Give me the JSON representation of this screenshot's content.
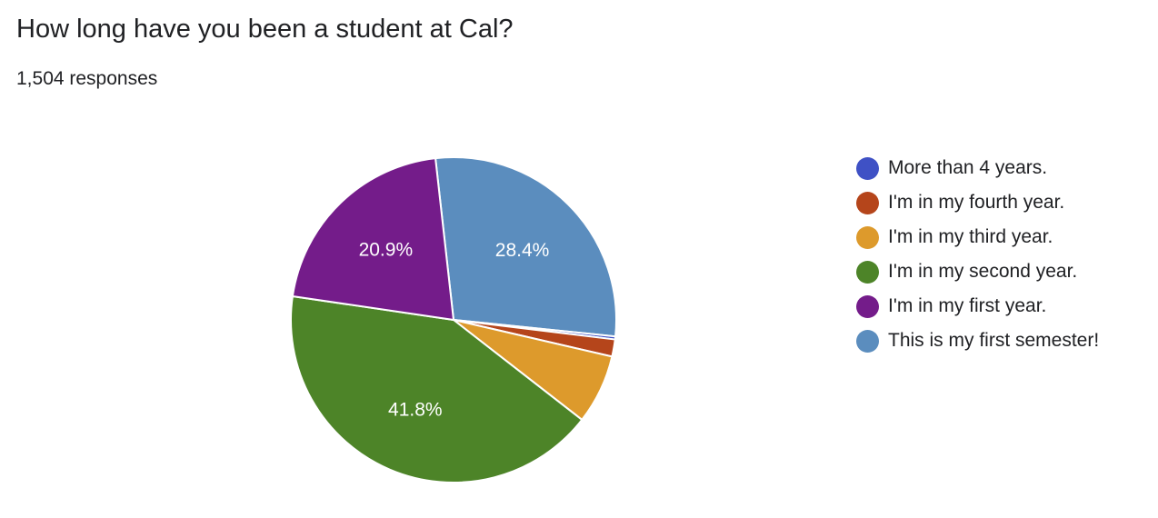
{
  "header": {
    "title": "How long have you been a student at Cal?",
    "responses": "1,504 responses"
  },
  "chart_data": {
    "type": "pie",
    "title": "How long have you been a student at Cal?",
    "categories": [
      "This is my first semester!",
      "More than 4 years.",
      "I'm in my fourth year.",
      "I'm in my third year.",
      "I'm in my second year.",
      "I'm in my first year."
    ],
    "values": [
      28.4,
      0.3,
      1.7,
      6.9,
      41.8,
      20.9
    ],
    "labels": [
      "28.4%",
      "",
      "",
      "",
      "41.8%",
      "20.9%"
    ],
    "colors": [
      "#5b8dbe",
      "#3f51c5",
      "#b5451b",
      "#dd9a2c",
      "#4d8428",
      "#741c8a"
    ],
    "unit": "%",
    "legend_position": "right",
    "legend": [
      {
        "label": "More than 4 years.",
        "color": "#3f51c5"
      },
      {
        "label": "I'm in my fourth year.",
        "color": "#b5451b"
      },
      {
        "label": "I'm in my third year.",
        "color": "#dd9a2c"
      },
      {
        "label": "I'm in my second year.",
        "color": "#4d8428"
      },
      {
        "label": "I'm in my first year.",
        "color": "#741c8a"
      },
      {
        "label": "This is my first semester!",
        "color": "#5b8dbe"
      }
    ]
  }
}
